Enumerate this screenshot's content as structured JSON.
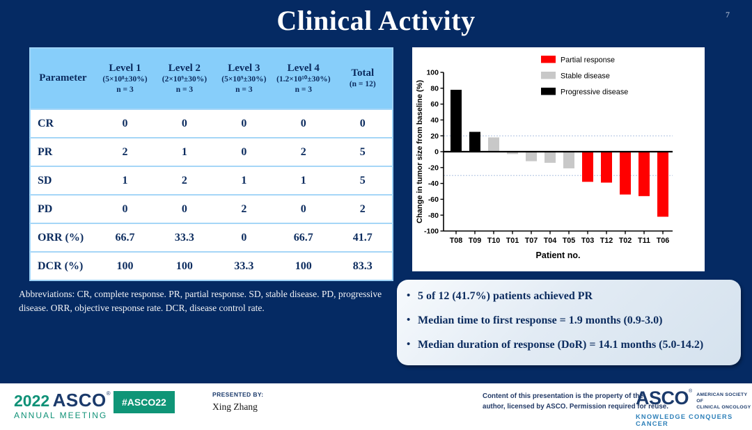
{
  "slide": {
    "title": "Clinical Activity",
    "page_number": "7"
  },
  "table": {
    "col_headers": [
      {
        "title": "Parameter",
        "sub": "",
        "n": ""
      },
      {
        "title": "Level 1",
        "sub": "(5×10⁸±30%)",
        "n": "n = 3"
      },
      {
        "title": "Level 2",
        "sub": "(2×10⁹±30%)",
        "n": "n = 3"
      },
      {
        "title": "Level 3",
        "sub": "(5×10⁹±30%)",
        "n": "n = 3"
      },
      {
        "title": "Level 4",
        "sub": "(1.2×10¹⁰±30%)",
        "n": "n = 3"
      },
      {
        "title": "Total",
        "sub": "(n = 12)",
        "n": ""
      }
    ],
    "rows": [
      {
        "param": "CR",
        "values": [
          "0",
          "0",
          "0",
          "0",
          "0"
        ]
      },
      {
        "param": "PR",
        "values": [
          "2",
          "1",
          "0",
          "2",
          "5"
        ]
      },
      {
        "param": "SD",
        "values": [
          "1",
          "2",
          "1",
          "1",
          "5"
        ]
      },
      {
        "param": "PD",
        "values": [
          "0",
          "0",
          "2",
          "0",
          "2"
        ]
      },
      {
        "param": "ORR (%)",
        "values": [
          "66.7",
          "33.3",
          "0",
          "66.7",
          "41.7"
        ]
      },
      {
        "param": "DCR (%)",
        "values": [
          "100",
          "100",
          "33.3",
          "100",
          "83.3"
        ]
      }
    ]
  },
  "abbreviations": "Abbreviations: CR, complete response. PR, partial response. SD, stable disease. PD, progressive disease. ORR, objective response rate. DCR, disease control rate.",
  "chart_data": {
    "type": "bar",
    "title": "",
    "xlabel": "Patient no.",
    "ylabel": "Change in tumor size from baseline (%)",
    "ylim": [
      -100,
      100
    ],
    "ytick_step": 20,
    "grid": false,
    "reference_lines": [
      20,
      -30
    ],
    "categories": [
      "T08",
      "T09",
      "T10",
      "T01",
      "T07",
      "T04",
      "T05",
      "T03",
      "T12",
      "T02",
      "T11",
      "T06"
    ],
    "values": [
      78,
      25,
      18,
      -3,
      -12,
      -14,
      -21,
      -38,
      -39,
      -54,
      -56,
      -82
    ],
    "responses": [
      "Progressive disease",
      "Progressive disease",
      "Stable disease",
      "Stable disease",
      "Stable disease",
      "Stable disease",
      "Stable disease",
      "Partial response",
      "Partial response",
      "Partial response",
      "Partial response",
      "Partial response"
    ],
    "color_map": {
      "Partial response": "#ff0000",
      "Stable disease": "#c8c8c8",
      "Progressive disease": "#000000"
    },
    "legend": [
      {
        "label": "Partial response",
        "color": "#ff0000"
      },
      {
        "label": "Stable disease",
        "color": "#c8c8c8"
      },
      {
        "label": "Progressive disease",
        "color": "#000000"
      }
    ],
    "legend_position": "top-right"
  },
  "findings": {
    "bullets": [
      "5 of 12 (41.7%) patients achieved PR",
      "Median time to first response = 1.9 months (0.9-3.0)",
      "Median duration of response (DoR) = 14.1 months (5.0-14.2)"
    ]
  },
  "footer": {
    "meeting_logo": {
      "year": "2022",
      "org": "ASCO",
      "sub": "ANNUAL MEETING"
    },
    "hashtag_badge": "#ASCO22",
    "presented_by_label": "PRESENTED BY:",
    "presenter": "Xing Zhang",
    "permission_line1": "Content of this presentation is the property of the",
    "permission_line2": "author, licensed by ASCO. Permission required for reuse.",
    "asco_logo": {
      "name": "ASCO",
      "society_line1": "AMERICAN SOCIETY OF",
      "society_line2": "CLINICAL ONCOLOGY",
      "tagline": "KNOWLEDGE CONQUERS CANCER"
    }
  },
  "colors": {
    "background_navy": "#052a63",
    "table_header_blue": "#87cefa",
    "table_border_blue": "#9ed3f7",
    "text_navy": "#0b2b5e",
    "findings_box_bg": "#dfe9f3",
    "bar_red": "#ff0000",
    "bar_gray": "#c8c8c8",
    "bar_black": "#000000",
    "asco_green": "#0f9577",
    "asco_navy": "#1b3a6b",
    "tagline_blue": "#2e80b9"
  }
}
